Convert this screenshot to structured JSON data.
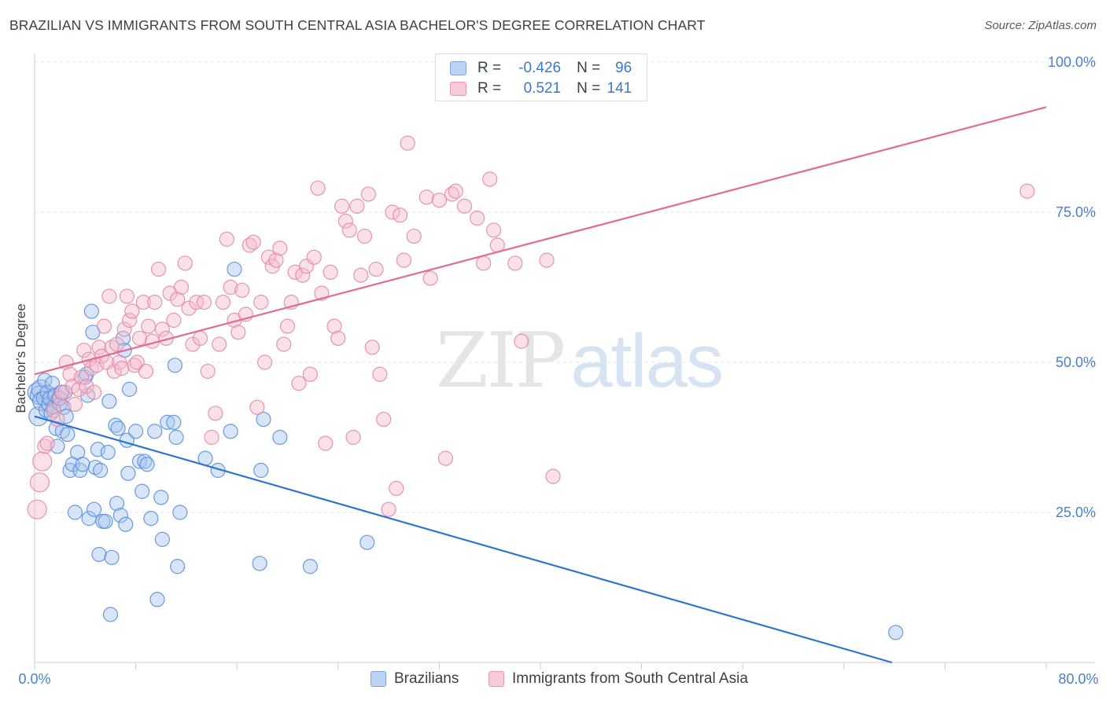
{
  "header": {
    "title": "BRAZILIAN VS IMMIGRANTS FROM SOUTH CENTRAL ASIA BACHELOR'S DEGREE CORRELATION CHART",
    "source": "Source: ZipAtlas.com"
  },
  "watermark": {
    "zip": "ZIP",
    "atlas": "atlas"
  },
  "legend": {
    "rows": [
      {
        "r_label": "R =",
        "r_value": "-0.426",
        "n_label": "N =",
        "n_value": "96"
      },
      {
        "r_label": "R =",
        "r_value": "0.521",
        "n_label": "N =",
        "n_value": "141"
      }
    ]
  },
  "bottom_legend": {
    "series1": "Brazilians",
    "series2": "Immigrants from South Central Asia"
  },
  "colors": {
    "blue_fill": "#a9c6f0",
    "blue_stroke": "#5b8fd8",
    "blue_line": "#2f72d0",
    "pink_fill": "#f5bccd",
    "pink_stroke": "#e38aa7",
    "pink_line": "#e26a93",
    "tick_text": "#4a7fd0",
    "grid": "#e4e7eb"
  },
  "chart_data": {
    "type": "scatter",
    "title": "BRAZILIAN VS IMMIGRANTS FROM SOUTH CENTRAL ASIA BACHELOR'S DEGREE CORRELATION CHART",
    "xlabel": "",
    "ylabel": "Bachelor's Degree",
    "xlim": [
      0,
      80
    ],
    "ylim": [
      0,
      100
    ],
    "x_tick_labels": [
      "0.0%",
      "80.0%"
    ],
    "y_tick_values": [
      25,
      50,
      75,
      100
    ],
    "y_tick_labels": [
      "25.0%",
      "50.0%",
      "75.0%",
      "100.0%"
    ],
    "grid": true,
    "legend_position": "top-center",
    "series": [
      {
        "name": "Brazilians",
        "R": -0.426,
        "N": 96,
        "trend": {
          "x": [
            0,
            67.8
          ],
          "y": [
            41.0,
            0
          ]
        },
        "points": [
          [
            0.2,
            45
          ],
          [
            0.3,
            41
          ],
          [
            0.4,
            44.5
          ],
          [
            0.5,
            45.5
          ],
          [
            0.6,
            43.5
          ],
          [
            0.7,
            44
          ],
          [
            0.8,
            47
          ],
          [
            0.9,
            42
          ],
          [
            1.0,
            45
          ],
          [
            1.1,
            43
          ],
          [
            1.2,
            44
          ],
          [
            1.3,
            41.5
          ],
          [
            1.4,
            46.5
          ],
          [
            1.5,
            42.5
          ],
          [
            1.6,
            44.5
          ],
          [
            1.7,
            39
          ],
          [
            1.8,
            36
          ],
          [
            1.9,
            44
          ],
          [
            2.0,
            43
          ],
          [
            2.1,
            45
          ],
          [
            2.2,
            38.5
          ],
          [
            2.3,
            42.5
          ],
          [
            2.4,
            45
          ],
          [
            2.5,
            41
          ],
          [
            2.6,
            38
          ],
          [
            2.8,
            32
          ],
          [
            3.0,
            33
          ],
          [
            3.2,
            25
          ],
          [
            3.4,
            35
          ],
          [
            3.6,
            32
          ],
          [
            3.8,
            33
          ],
          [
            4.0,
            47.5
          ],
          [
            4.1,
            48
          ],
          [
            4.2,
            44.5
          ],
          [
            4.3,
            24
          ],
          [
            4.5,
            58.5
          ],
          [
            4.6,
            55
          ],
          [
            4.7,
            25.5
          ],
          [
            4.8,
            32.5
          ],
          [
            5.0,
            35.5
          ],
          [
            5.1,
            18
          ],
          [
            5.2,
            32
          ],
          [
            5.4,
            23.5
          ],
          [
            5.6,
            23.5
          ],
          [
            5.8,
            35
          ],
          [
            5.9,
            43.5
          ],
          [
            6.0,
            8
          ],
          [
            6.1,
            17.5
          ],
          [
            6.4,
            39.5
          ],
          [
            6.5,
            26.5
          ],
          [
            6.6,
            39
          ],
          [
            6.8,
            24.5
          ],
          [
            7.0,
            54
          ],
          [
            7.1,
            52
          ],
          [
            7.2,
            23
          ],
          [
            7.3,
            37
          ],
          [
            7.4,
            31.5
          ],
          [
            7.5,
            45.5
          ],
          [
            8.0,
            38.5
          ],
          [
            8.3,
            33.5
          ],
          [
            8.5,
            28.5
          ],
          [
            8.7,
            33.5
          ],
          [
            8.9,
            33
          ],
          [
            9.2,
            24
          ],
          [
            9.5,
            38.5
          ],
          [
            9.7,
            10.5
          ],
          [
            10.0,
            27.5
          ],
          [
            10.1,
            20.5
          ],
          [
            10.5,
            40
          ],
          [
            11.0,
            40
          ],
          [
            11.1,
            49.5
          ],
          [
            11.2,
            37.5
          ],
          [
            11.3,
            16
          ],
          [
            11.5,
            25
          ],
          [
            13.5,
            34
          ],
          [
            14.5,
            32
          ],
          [
            15.5,
            38.5
          ],
          [
            15.8,
            65.5
          ],
          [
            17.8,
            16.5
          ],
          [
            17.9,
            32
          ],
          [
            18.1,
            40.5
          ],
          [
            19.4,
            37.5
          ],
          [
            21.8,
            16
          ],
          [
            26.3,
            20
          ],
          [
            68.1,
            5
          ]
        ]
      },
      {
        "name": "Immigrants from South Central Asia",
        "R": 0.521,
        "N": 141,
        "trend": {
          "x": [
            0,
            80
          ],
          "y": [
            48.0,
            92.5
          ]
        },
        "points": [
          [
            0.2,
            25.5
          ],
          [
            0.4,
            30
          ],
          [
            0.6,
            33.5
          ],
          [
            0.8,
            36
          ],
          [
            1.0,
            36.5
          ],
          [
            1.5,
            42
          ],
          [
            1.8,
            40.5
          ],
          [
            2.0,
            44
          ],
          [
            2.2,
            45
          ],
          [
            2.5,
            50
          ],
          [
            2.8,
            48
          ],
          [
            3.0,
            46
          ],
          [
            3.2,
            43
          ],
          [
            3.5,
            45.5
          ],
          [
            3.7,
            47.5
          ],
          [
            3.9,
            52
          ],
          [
            4.1,
            46
          ],
          [
            4.3,
            50.5
          ],
          [
            4.5,
            49
          ],
          [
            4.7,
            45
          ],
          [
            4.9,
            49.5
          ],
          [
            5.1,
            52.5
          ],
          [
            5.3,
            51
          ],
          [
            5.5,
            56
          ],
          [
            5.7,
            50
          ],
          [
            5.9,
            61
          ],
          [
            6.1,
            52.5
          ],
          [
            6.3,
            48.5
          ],
          [
            6.5,
            53
          ],
          [
            6.7,
            50
          ],
          [
            6.9,
            49
          ],
          [
            7.1,
            55.5
          ],
          [
            7.3,
            61
          ],
          [
            7.5,
            57
          ],
          [
            7.7,
            58.5
          ],
          [
            7.9,
            49.5
          ],
          [
            8.1,
            50
          ],
          [
            8.3,
            54
          ],
          [
            8.6,
            60
          ],
          [
            8.8,
            48.5
          ],
          [
            9.0,
            56
          ],
          [
            9.3,
            53.5
          ],
          [
            9.5,
            60
          ],
          [
            9.8,
            65.5
          ],
          [
            10.1,
            55.5
          ],
          [
            10.4,
            54
          ],
          [
            10.7,
            61.5
          ],
          [
            11.0,
            57
          ],
          [
            11.3,
            60.5
          ],
          [
            11.6,
            62.5
          ],
          [
            11.9,
            66.5
          ],
          [
            12.2,
            59
          ],
          [
            12.5,
            53
          ],
          [
            12.8,
            60
          ],
          [
            13.1,
            54
          ],
          [
            13.4,
            60
          ],
          [
            13.7,
            48.5
          ],
          [
            14.0,
            37.5
          ],
          [
            14.3,
            41.5
          ],
          [
            14.6,
            53
          ],
          [
            14.9,
            60
          ],
          [
            15.2,
            70.5
          ],
          [
            15.5,
            62.5
          ],
          [
            15.8,
            57
          ],
          [
            16.1,
            55
          ],
          [
            16.4,
            62
          ],
          [
            16.7,
            58
          ],
          [
            17.0,
            69.5
          ],
          [
            17.3,
            70
          ],
          [
            17.6,
            42.5
          ],
          [
            17.9,
            60
          ],
          [
            18.2,
            50
          ],
          [
            18.5,
            67.5
          ],
          [
            18.8,
            66
          ],
          [
            19.1,
            67
          ],
          [
            19.4,
            69
          ],
          [
            19.7,
            53
          ],
          [
            20.0,
            56
          ],
          [
            20.3,
            60
          ],
          [
            20.6,
            65
          ],
          [
            20.9,
            46.5
          ],
          [
            21.2,
            64.5
          ],
          [
            21.5,
            66
          ],
          [
            21.8,
            48
          ],
          [
            22.1,
            67.5
          ],
          [
            22.4,
            79
          ],
          [
            22.7,
            61.5
          ],
          [
            23.0,
            36.5
          ],
          [
            23.4,
            65
          ],
          [
            23.7,
            56
          ],
          [
            24.0,
            54
          ],
          [
            24.3,
            76
          ],
          [
            24.6,
            73.5
          ],
          [
            24.9,
            72
          ],
          [
            25.2,
            37.5
          ],
          [
            25.5,
            76
          ],
          [
            25.8,
            64.5
          ],
          [
            26.1,
            71
          ],
          [
            26.4,
            78
          ],
          [
            26.7,
            52.5
          ],
          [
            27.0,
            65.5
          ],
          [
            27.3,
            48
          ],
          [
            27.6,
            40.5
          ],
          [
            28.0,
            25.5
          ],
          [
            28.3,
            75
          ],
          [
            28.6,
            29
          ],
          [
            28.9,
            74.5
          ],
          [
            29.2,
            67
          ],
          [
            29.5,
            86.5
          ],
          [
            30.0,
            71
          ],
          [
            31.0,
            77.5
          ],
          [
            31.3,
            64
          ],
          [
            32.0,
            77
          ],
          [
            32.5,
            34
          ],
          [
            33.0,
            78
          ],
          [
            33.3,
            78.5
          ],
          [
            34.0,
            76
          ],
          [
            35.0,
            74
          ],
          [
            35.5,
            66.5
          ],
          [
            36.0,
            80.5
          ],
          [
            36.3,
            72
          ],
          [
            36.6,
            69.5
          ],
          [
            38.0,
            66.5
          ],
          [
            38.5,
            53.5
          ],
          [
            40.5,
            67
          ],
          [
            41.0,
            31
          ],
          [
            78.5,
            78.5
          ]
        ]
      }
    ]
  }
}
